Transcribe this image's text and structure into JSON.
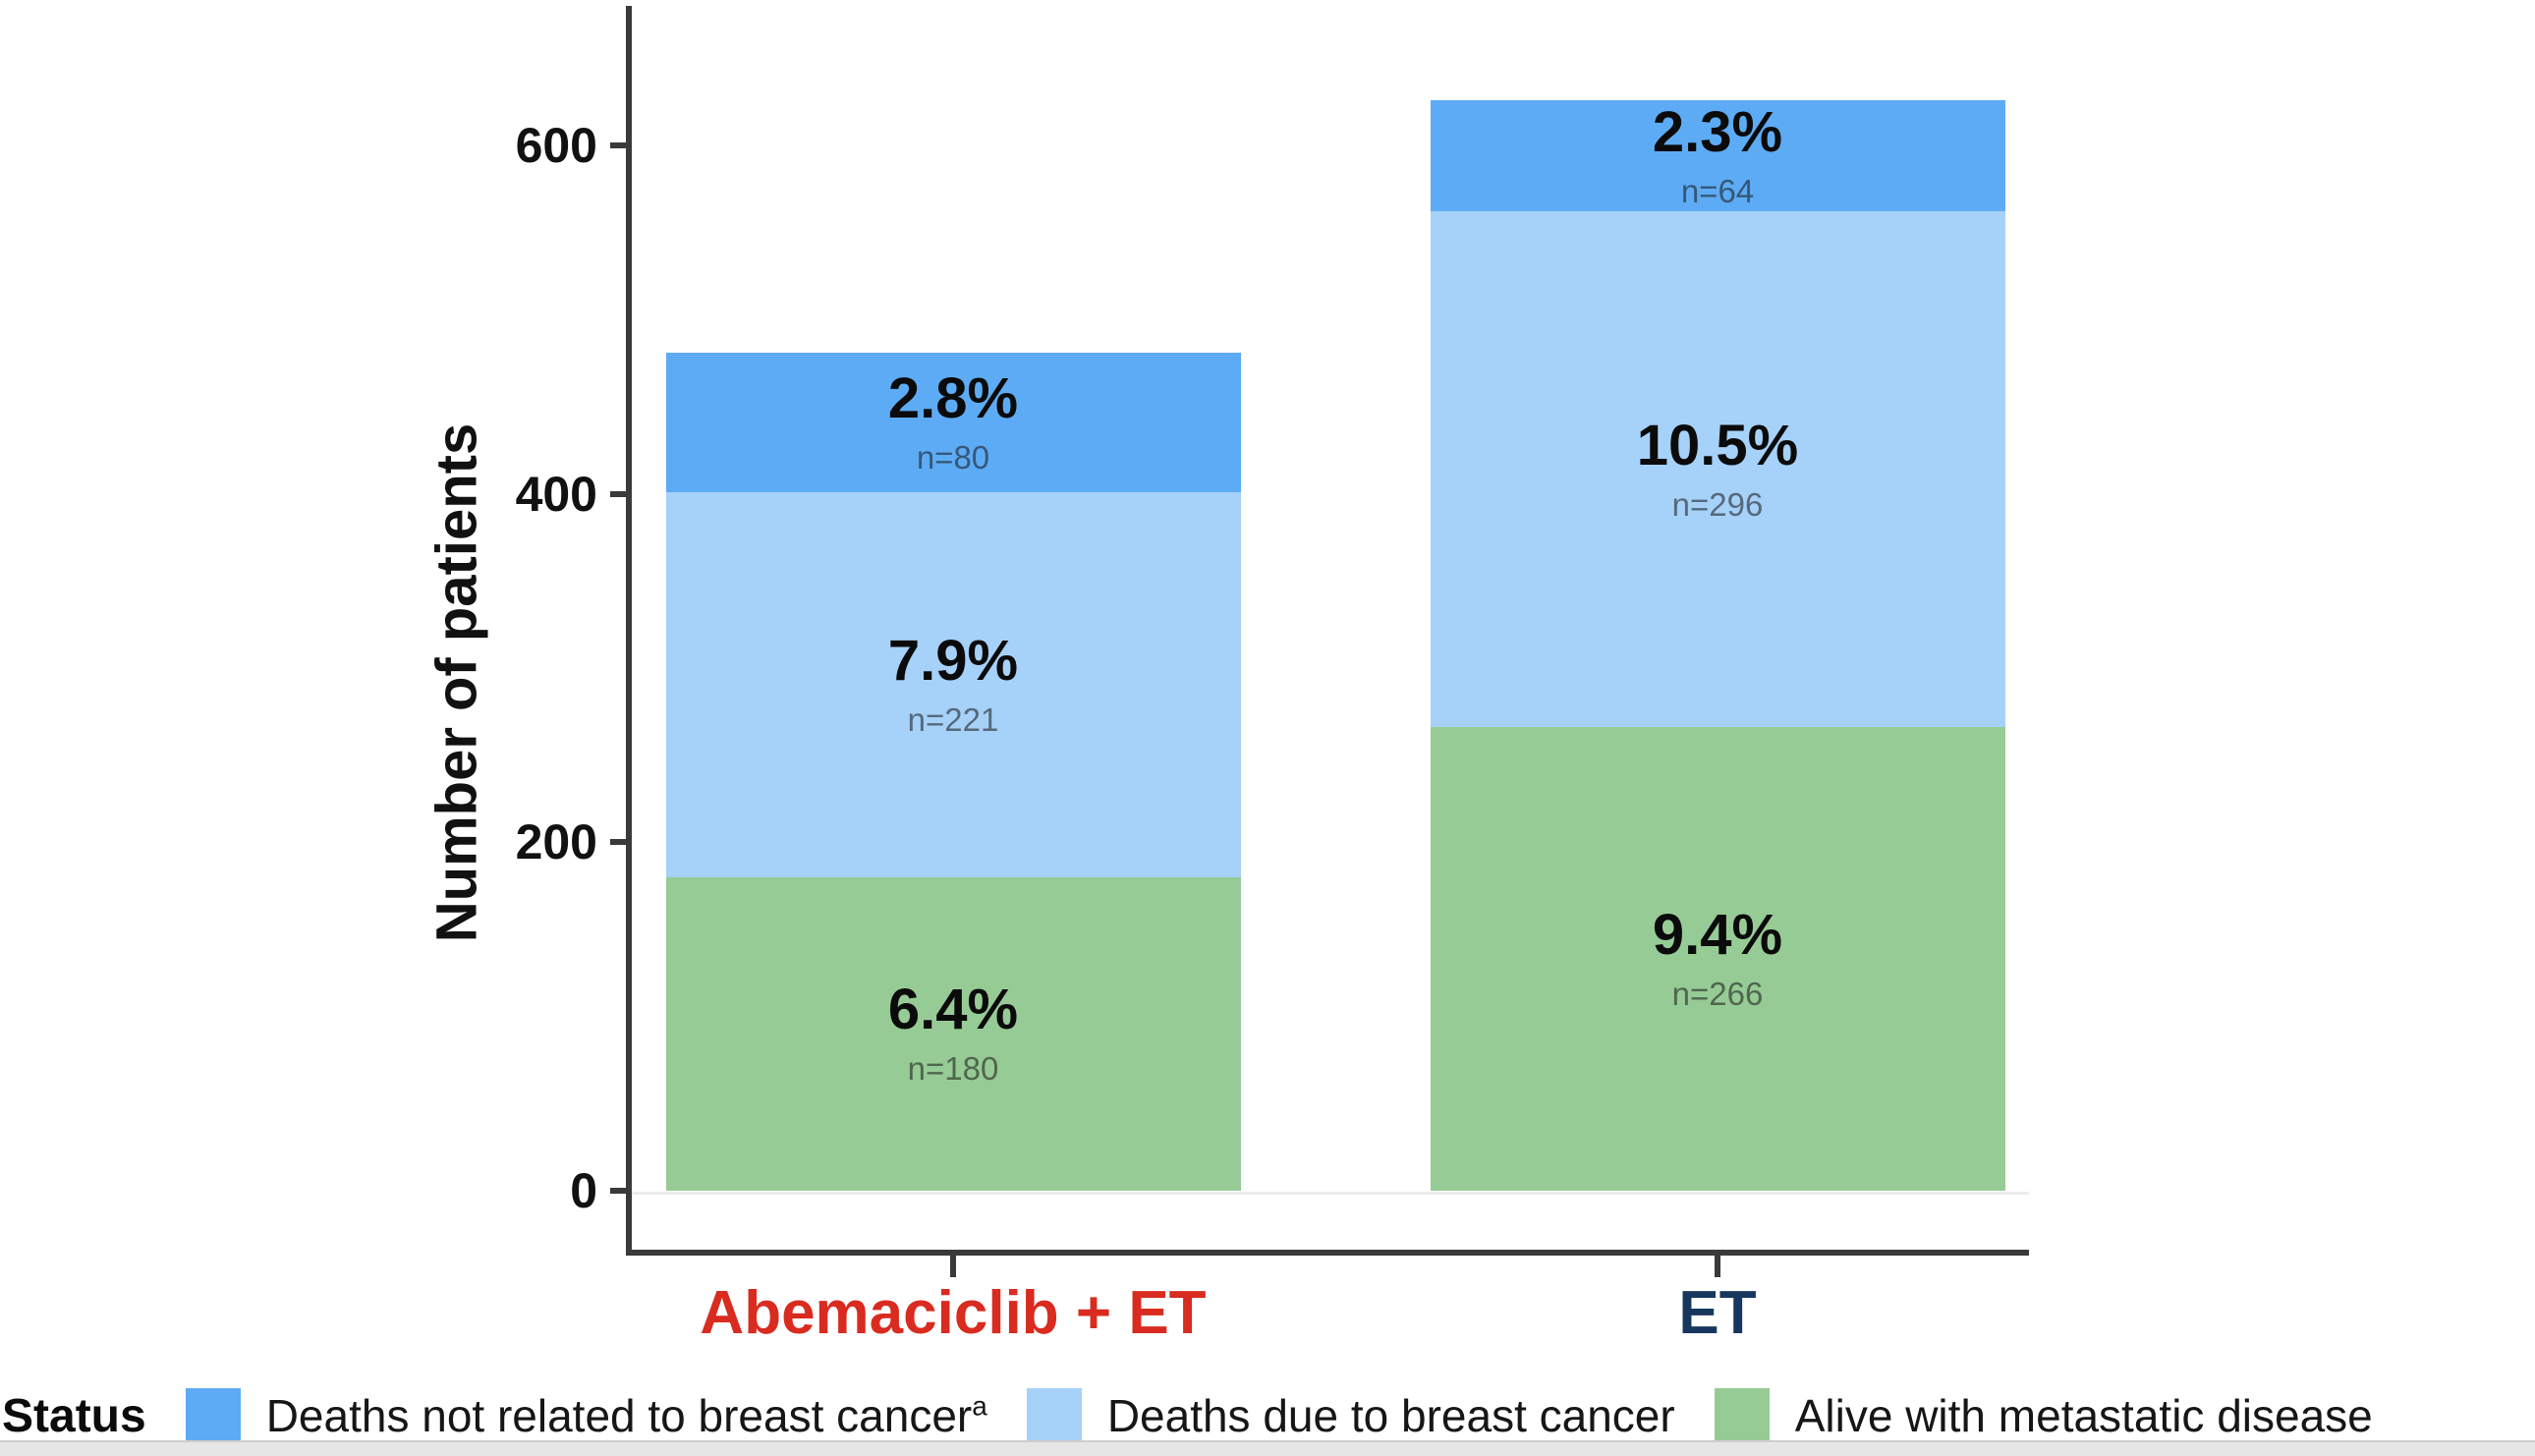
{
  "chart_data": {
    "type": "bar",
    "subtype": "stacked",
    "title": "",
    "xlabel": "",
    "ylabel": "Number of patients",
    "ylim": [
      0,
      680
    ],
    "y_ticks": [
      0,
      200,
      400,
      600
    ],
    "grid": "off",
    "categories": [
      "Abemaciclib + ET",
      "ET"
    ],
    "category_label_colors": [
      "#d92b1f",
      "#17375f"
    ],
    "series": [
      {
        "name": "Alive with metastatic disease",
        "superscript": "",
        "color": "#97cb96",
        "values": [
          180,
          266
        ],
        "pct_labels": [
          "6.4%",
          "9.4%"
        ],
        "n_labels": [
          "n=180",
          "n=266"
        ]
      },
      {
        "name": "Deaths due to breast cancer",
        "superscript": "",
        "color": "#a6d1f9",
        "values": [
          221,
          296
        ],
        "pct_labels": [
          "7.9%",
          "10.5%"
        ],
        "n_labels": [
          "n=221",
          "n=296"
        ]
      },
      {
        "name": "Deaths not related to breast cancer",
        "superscript": "a",
        "color": "#5dabf4",
        "values": [
          80,
          64
        ],
        "pct_labels": [
          "2.8%",
          "2.3%"
        ],
        "n_labels": [
          "n=80",
          "n=64"
        ]
      }
    ],
    "legend": {
      "title": "Status",
      "position": "bottom",
      "order_top_to_bottom_segment_first": true
    },
    "axis_color": "#3a3a3a"
  }
}
